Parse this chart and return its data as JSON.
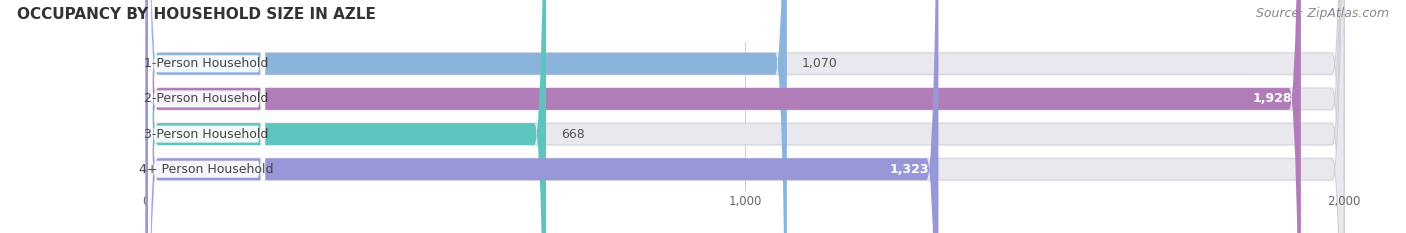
{
  "title": "OCCUPANCY BY HOUSEHOLD SIZE IN AZLE",
  "source": "Source: ZipAtlas.com",
  "categories": [
    "1-Person Household",
    "2-Person Household",
    "3-Person Household",
    "4+ Person Household"
  ],
  "values": [
    1070,
    1928,
    668,
    1323
  ],
  "bar_colors": [
    "#8ab4dc",
    "#b07db8",
    "#5dc4be",
    "#9898d8"
  ],
  "value_labels": [
    "1,070",
    "1,928",
    "668",
    "1,323"
  ],
  "xmax": 2000,
  "xticks": [
    0,
    1000,
    2000
  ],
  "xticklabels": [
    "0",
    "1,000",
    "2,000"
  ],
  "bar_height": 0.62,
  "background_color": "#ffffff",
  "bar_bg_color": "#e8e8ee",
  "title_fontsize": 11,
  "source_fontsize": 9,
  "label_fontsize": 9,
  "value_fontsize": 9,
  "label_box_color": "#ffffff"
}
